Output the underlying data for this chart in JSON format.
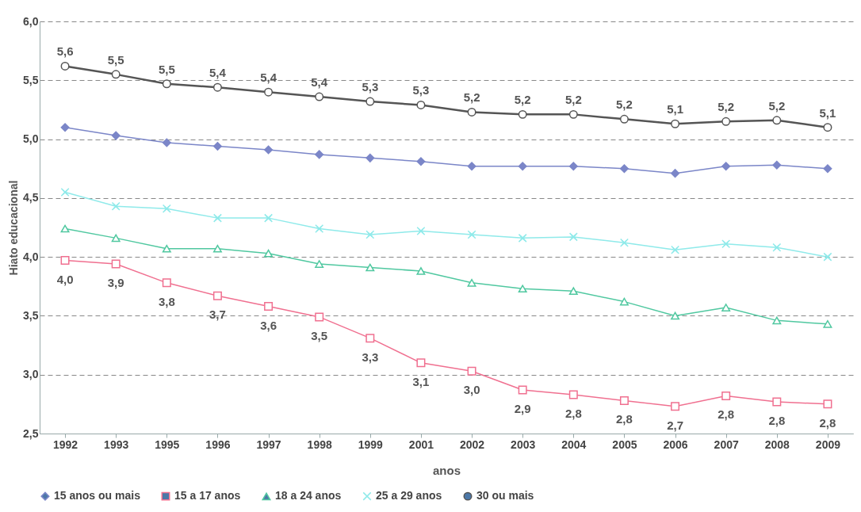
{
  "chart_data": {
    "type": "line",
    "xlabel": "anos",
    "ylabel": "Hiato educacional",
    "categories": [
      "1992",
      "1993",
      "1995",
      "1996",
      "1997",
      "1998",
      "1999",
      "2001",
      "2002",
      "2003",
      "2004",
      "2005",
      "2006",
      "2007",
      "2008",
      "2009"
    ],
    "ylim": [
      2.5,
      6.0
    ],
    "yticks": [
      {
        "value": 2.5,
        "label": "2,5"
      },
      {
        "value": 3.0,
        "label": "3,0"
      },
      {
        "value": 3.5,
        "label": "3,5"
      },
      {
        "value": 4.0,
        "label": "4,0"
      },
      {
        "value": 4.5,
        "label": "4,5"
      },
      {
        "value": 5.0,
        "label": "5,0"
      },
      {
        "value": 5.5,
        "label": "5,5"
      },
      {
        "value": 6.0,
        "label": "6,0"
      }
    ],
    "grid": "y",
    "legend": "bottom",
    "series": [
      {
        "name": "15 anos ou mais",
        "color": "#7b86c8",
        "marker": "diamond",
        "values": [
          5.1,
          5.03,
          4.97,
          4.94,
          4.91,
          4.87,
          4.84,
          4.81,
          4.77,
          4.77,
          4.77,
          4.75,
          4.71,
          4.77,
          4.78,
          4.75
        ]
      },
      {
        "name": "15 a 17 anos",
        "color": "#f07090",
        "marker": "square",
        "values": [
          3.97,
          3.94,
          3.78,
          3.67,
          3.58,
          3.49,
          3.31,
          3.1,
          3.03,
          2.87,
          2.83,
          2.78,
          2.73,
          2.82,
          2.77,
          2.75
        ],
        "value_labels": [
          "4,0",
          "3,9",
          "3,8",
          "3,7",
          "3,6",
          "3,5",
          "3,3",
          "3,1",
          "3,0",
          "2,9",
          "2,8",
          "2,8",
          "2,7",
          "2,8",
          "2,8",
          "2,8"
        ]
      },
      {
        "name": "18 a 24 anos",
        "color": "#50c8a0",
        "marker": "triangle",
        "values": [
          4.24,
          4.16,
          4.07,
          4.07,
          4.03,
          3.94,
          3.91,
          3.88,
          3.78,
          3.73,
          3.71,
          3.62,
          3.5,
          3.57,
          3.46,
          3.43
        ]
      },
      {
        "name": "25 a 29 anos",
        "color": "#8feaea",
        "marker": "cross",
        "values": [
          4.55,
          4.43,
          4.41,
          4.33,
          4.33,
          4.24,
          4.19,
          4.22,
          4.19,
          4.16,
          4.17,
          4.12,
          4.06,
          4.11,
          4.08,
          4.0
        ]
      },
      {
        "name": "30 ou mais",
        "color": "#555555",
        "marker": "circle",
        "values": [
          5.62,
          5.55,
          5.47,
          5.44,
          5.4,
          5.36,
          5.32,
          5.29,
          5.23,
          5.21,
          5.21,
          5.17,
          5.13,
          5.15,
          5.16,
          5.1
        ],
        "value_labels": [
          "5,6",
          "5,5",
          "5,5",
          "5,4",
          "5,4",
          "5,4",
          "5,3",
          "5,3",
          "5,2",
          "5,2",
          "5,2",
          "5,2",
          "5,1",
          "5,2",
          "5,2",
          "5,1"
        ]
      }
    ]
  }
}
